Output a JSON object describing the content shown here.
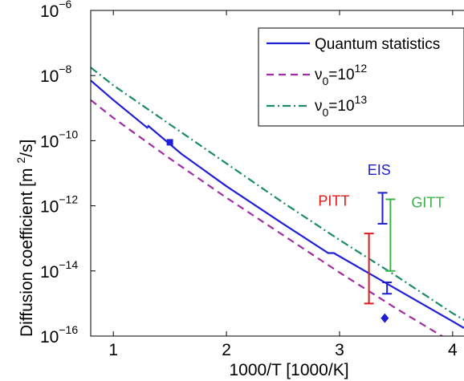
{
  "chart_data": {
    "type": "line",
    "xlabel": "1000/T [1000/K]",
    "ylabel": "Diffusion coefficient [m ",
    "ylabel_sup": "2",
    "ylabel_end": "/s]",
    "xlim": [
      0.8,
      4.15
    ],
    "ylim_log10": [
      -16,
      -6
    ],
    "y_scale": "log",
    "grid": false,
    "legend_position": "top-right",
    "x_ticks": [
      {
        "value": 1,
        "label": "1"
      },
      {
        "value": 2,
        "label": "2"
      },
      {
        "value": 3,
        "label": "3"
      },
      {
        "value": 4,
        "label": "4"
      }
    ],
    "y_ticks": [
      {
        "exp": -6,
        "base": "10",
        "power": "−6"
      },
      {
        "exp": -8,
        "base": "10",
        "power": "−8"
      },
      {
        "exp": -10,
        "base": "10",
        "power": "−10"
      },
      {
        "exp": -12,
        "base": "10",
        "power": "−12"
      },
      {
        "exp": -14,
        "base": "10",
        "power": "−14"
      },
      {
        "exp": -16,
        "base": "10",
        "power": "−16"
      }
    ],
    "series": [
      {
        "name": "Quantum statistics",
        "color": "#1f1fd6",
        "dash": "solid",
        "points": [
          [
            0.8,
            -8.15
          ],
          [
            1.0,
            -8.75
          ],
          [
            1.3,
            -9.6
          ],
          [
            1.31,
            -9.55
          ],
          [
            1.6,
            -10.4
          ],
          [
            2.0,
            -11.4
          ],
          [
            2.5,
            -12.55
          ],
          [
            2.9,
            -13.45
          ],
          [
            2.95,
            -13.45
          ],
          [
            3.3,
            -14.15
          ],
          [
            3.6,
            -14.75
          ],
          [
            4.0,
            -15.55
          ],
          [
            4.1,
            -15.75
          ]
        ]
      },
      {
        "name": "ν0=10^12",
        "label_main": "ν",
        "label_sub": "0",
        "label_eq": "=10",
        "label_sup": "12",
        "color": "#a12ca8",
        "dash": "dashed",
        "points": [
          [
            0.8,
            -8.75
          ],
          [
            1.0,
            -9.3
          ],
          [
            1.5,
            -10.55
          ],
          [
            2.0,
            -11.75
          ],
          [
            2.5,
            -12.9
          ],
          [
            3.0,
            -14.05
          ],
          [
            3.5,
            -15.15
          ],
          [
            4.0,
            -16.2
          ]
        ]
      },
      {
        "name": "ν0=10^13",
        "label_main": "ν",
        "label_sub": "0",
        "label_eq": "=10",
        "label_sup": "13",
        "color": "#1b8a6b",
        "dash": "dashdot",
        "points": [
          [
            0.8,
            -7.75
          ],
          [
            1.0,
            -8.3
          ],
          [
            1.5,
            -9.5
          ],
          [
            2.0,
            -10.7
          ],
          [
            2.5,
            -11.9
          ],
          [
            3.0,
            -13.05
          ],
          [
            3.5,
            -14.15
          ],
          [
            4.0,
            -15.3
          ],
          [
            4.15,
            -15.6
          ]
        ]
      }
    ],
    "markers": [
      {
        "name": "square-point",
        "shape": "square",
        "color": "#1f1fd6",
        "x": 1.5,
        "y": -10.05
      },
      {
        "name": "diamond-point",
        "shape": "diamond",
        "color": "#1f1fd6",
        "x": 3.4,
        "y": -15.45
      }
    ],
    "error_bars": [
      {
        "label": "EIS",
        "color": "#1f1fd6",
        "x": 3.38,
        "y_low": -12.55,
        "y_high": -11.6,
        "label_x": 3.35,
        "label_y": -11.05
      },
      {
        "label": "",
        "color": "#1f1fd6",
        "x": 3.42,
        "y_low": -14.7,
        "y_high": -14.35
      },
      {
        "label": "PITT",
        "color": "#e01a1a",
        "x": 3.26,
        "y_low": -15.0,
        "y_high": -12.85,
        "label_x": 2.95,
        "label_y": -12.0
      },
      {
        "label": "GITT",
        "color": "#3cb34a",
        "x": 3.45,
        "y_low": -14.0,
        "y_high": -11.8,
        "label_x": 3.78,
        "label_y": -12.05
      }
    ]
  }
}
